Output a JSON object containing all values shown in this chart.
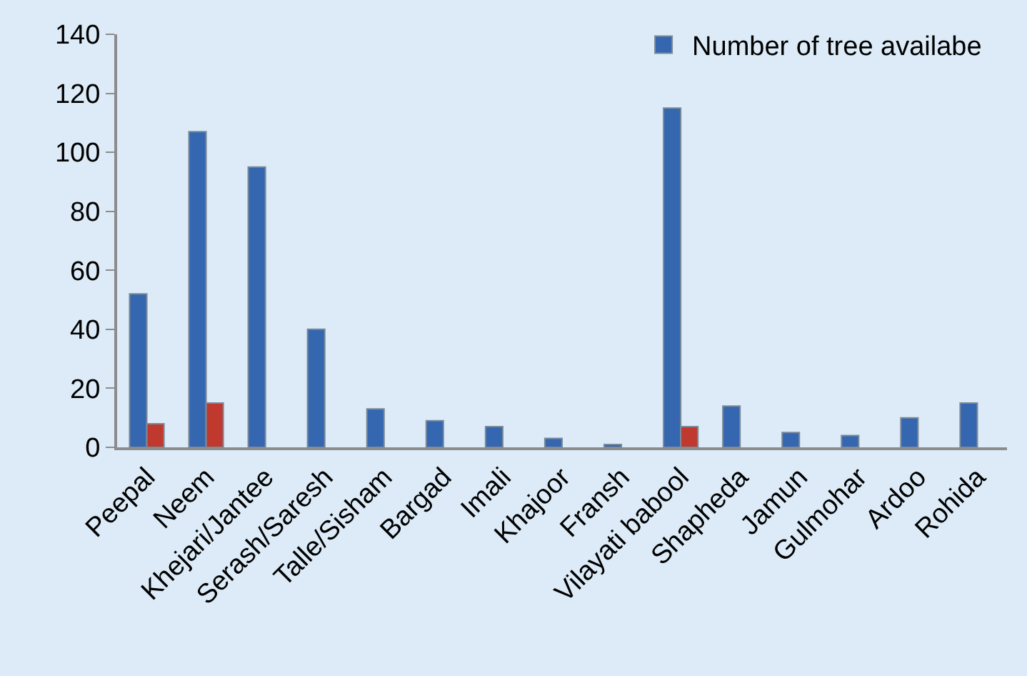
{
  "chart_data": {
    "type": "bar",
    "categories": [
      "Peepal",
      "Neem",
      "Khejari/Jantee",
      "Serash/Saresh",
      "Talle/Sisham",
      "Bargad",
      "Imali",
      "Khajoor",
      "Fransh",
      "Vilayati babool",
      "Shapheda",
      "Jamun",
      "Gulmohar",
      "Ardoo",
      "Rohida"
    ],
    "series": [
      {
        "name": "Number of tree availabe",
        "color": "#3566b0",
        "values": [
          52,
          107,
          95,
          40,
          13,
          9,
          7,
          3,
          1,
          115,
          14,
          5,
          4,
          10,
          15
        ]
      },
      {
        "color": "#c0392f",
        "values": [
          8,
          15,
          null,
          null,
          null,
          null,
          null,
          null,
          null,
          7,
          null,
          null,
          null,
          null,
          null
        ]
      }
    ],
    "ylim": [
      0,
      140
    ],
    "yticks": [
      0,
      20,
      40,
      60,
      80,
      100,
      120,
      140
    ],
    "grid": false,
    "legend": "top right"
  }
}
